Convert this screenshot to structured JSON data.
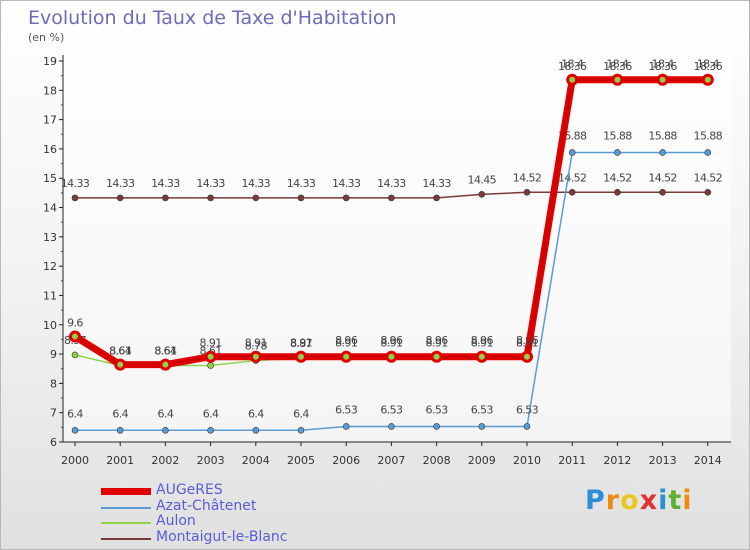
{
  "header": {
    "title": "Evolution du Taux de Taxe d'Habitation",
    "subtitle": "(en %)"
  },
  "logo": {
    "letters": [
      "P",
      "r",
      "o",
      "x",
      "i",
      "t",
      "i"
    ],
    "colors": [
      "#2a8fd6",
      "#f08a10",
      "#e8c820",
      "#e03030",
      "#2a8fd6",
      "#60b030",
      "#f08a10"
    ]
  },
  "chart_data": {
    "type": "line",
    "title": "Evolution du Taux de Taxe d'Habitation",
    "ylabel": "(en %)",
    "xlabel": "",
    "ylim": [
      6,
      19
    ],
    "yticks": [
      6,
      7,
      8,
      9,
      10,
      11,
      12,
      13,
      14,
      15,
      16,
      17,
      18,
      19
    ],
    "categories": [
      "2000",
      "2001",
      "2002",
      "2003",
      "2004",
      "2005",
      "2006",
      "2007",
      "2008",
      "2009",
      "2010",
      "2011",
      "2012",
      "2013",
      "2014"
    ],
    "grid": false,
    "legend_position": "bottom-left",
    "series": [
      {
        "name": "AUGeRES",
        "color": "#e00000",
        "values": [
          9.6,
          8.64,
          8.64,
          8.91,
          8.91,
          8.91,
          8.91,
          8.91,
          8.91,
          8.91,
          8.91,
          18.36,
          18.36,
          18.36,
          18.36
        ],
        "labels": [
          "9.6",
          "8.64",
          "8.64",
          "8.91",
          "8.91",
          "8.91",
          "8.91",
          "8.91",
          "8.91",
          "8.91",
          "8.91",
          "18.36",
          "18.36",
          "18.36",
          "18.36"
        ]
      },
      {
        "name": "Azat-Châtenet",
        "color": "#5b9bd5",
        "values": [
          6.4,
          6.4,
          6.4,
          6.4,
          6.4,
          6.4,
          6.53,
          6.53,
          6.53,
          6.53,
          6.53,
          15.88,
          15.88,
          15.88,
          15.88
        ],
        "labels": [
          "6.4",
          "6.4",
          "6.4",
          "6.4",
          "6.4",
          "6.4",
          "6.53",
          "6.53",
          "6.53",
          "6.53",
          "6.53",
          "15.88",
          "15.88",
          "15.88",
          "15.88"
        ]
      },
      {
        "name": "Aulon",
        "color": "#8fd24a",
        "values": [
          8.97,
          8.61,
          8.61,
          8.61,
          8.78,
          8.87,
          8.96,
          8.96,
          8.96,
          8.96,
          8.96,
          18.4,
          18.4,
          18.4,
          18.4
        ],
        "labels": [
          "8.97",
          "8.61",
          "8.61",
          "8.61",
          "8.78",
          "8.87",
          "8.96",
          "8.96",
          "8.96",
          "8.96",
          "8.96",
          "18.4",
          "18.4",
          "18.4",
          "18.4"
        ]
      },
      {
        "name": "Montaigut-le-Blanc",
        "color": "#7a3a3a",
        "values": [
          14.33,
          14.33,
          14.33,
          14.33,
          14.33,
          14.33,
          14.33,
          14.33,
          14.33,
          14.45,
          14.52,
          14.52,
          14.52,
          14.52,
          14.52
        ],
        "labels": [
          "14.33",
          "14.33",
          "14.33",
          "14.33",
          "14.33",
          "14.33",
          "14.33",
          "14.33",
          "14.33",
          "14.45",
          "14.52",
          "14.52",
          "14.52",
          "14.52",
          "14.52"
        ]
      }
    ]
  }
}
